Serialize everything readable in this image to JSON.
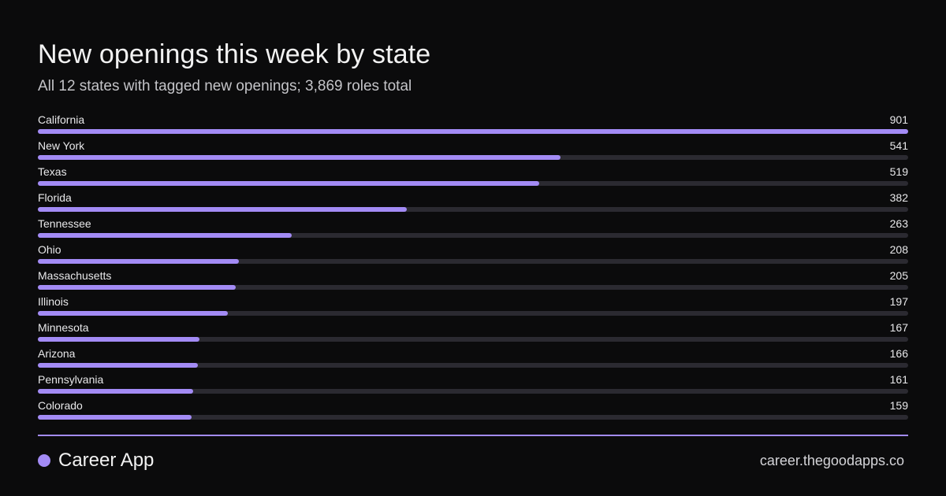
{
  "header": {
    "title": "New openings this week by state",
    "subtitle": "All 12 states with tagged new openings; 3,869 roles total"
  },
  "footer": {
    "brand": "Career App",
    "site": "career.thegoodapps.co"
  },
  "colors": {
    "accent": "#a38bf5",
    "track": "#2b2a31",
    "background": "#0b0b0c"
  },
  "chart_data": {
    "type": "bar",
    "orientation": "horizontal",
    "categories": [
      "California",
      "New York",
      "Texas",
      "Florida",
      "Tennessee",
      "Ohio",
      "Massachusetts",
      "Illinois",
      "Minnesota",
      "Arizona",
      "Pennsylvania",
      "Colorado"
    ],
    "values": [
      901,
      541,
      519,
      382,
      263,
      208,
      205,
      197,
      167,
      166,
      161,
      159
    ],
    "value_labels": [
      "901",
      "541",
      "519",
      "382",
      "263",
      "208",
      "205",
      "197",
      "167",
      "166",
      "161",
      "159"
    ],
    "xlim": [
      0,
      901
    ],
    "grid": false
  }
}
